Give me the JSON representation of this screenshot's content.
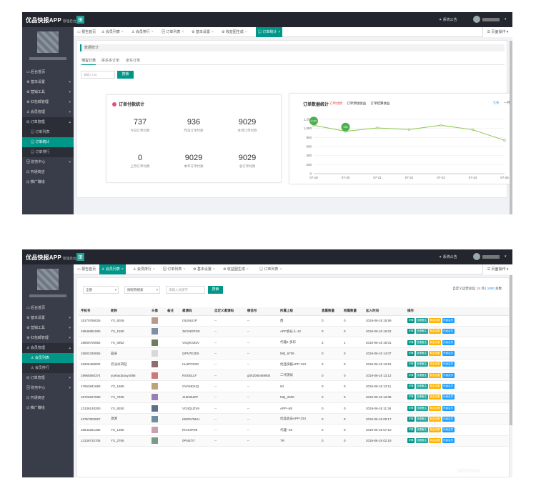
{
  "app": {
    "title": "优品快报APP",
    "subtitle": "管理后台",
    "notice": "系统公告",
    "page_ops": "页面操作",
    "grid_icon": "grid-icon"
  },
  "menu": {
    "home": "后台首页",
    "basic": "基本设置",
    "market": "营销工具",
    "red": "红包邮管理",
    "member": "会员管理",
    "order": "订单管理",
    "order_list": "订单列表",
    "order_stats": "订单统计",
    "order_rank": "订单排行",
    "finance": "财务中心",
    "store": "开通商店",
    "promo": "推广赚钱",
    "member_list": "会员列表",
    "member_rank": "会员排行"
  },
  "s1": {
    "tabs": [
      "报告首页",
      "会员列表",
      "会员排行",
      "订单列表",
      "基本设置",
      "收益图生成",
      "订单统计"
    ],
    "crumb": "数据统计",
    "subtabs": [
      "淘宝订单",
      "拼多多订单",
      "京东订单"
    ],
    "search_placeholder": "请输入UID",
    "search_btn": "搜索",
    "stats_title": "订单付款统计",
    "stats": [
      {
        "value": "737",
        "label": "今日订单付款"
      },
      {
        "value": "936",
        "label": "昨日订单付款"
      },
      {
        "value": "9029",
        "label": "本月订单付款"
      },
      {
        "value": "0",
        "label": "上月订单付款"
      },
      {
        "value": "9029",
        "label": "本年订单付款"
      },
      {
        "value": "9029",
        "label": "总订单付款"
      }
    ],
    "chart_title": "订单数据统计",
    "chart_links": [
      "订单付款",
      "订单预估收益",
      "订单结算收益"
    ],
    "chart_range": [
      "七天",
      "一月",
      "一年"
    ]
  },
  "chart_data": {
    "type": "line",
    "x": [
      "07-19",
      "07-20",
      "07-21",
      "07-22",
      "07-23",
      "07-24",
      "07-25"
    ],
    "series": [
      {
        "name": "订单付款",
        "values": [
          1070,
          936,
          1010,
          975,
          1070,
          970,
          737
        ]
      }
    ],
    "ylim": [
      0,
      1200
    ],
    "yticks": [
      "0",
      "200",
      "400",
      "600",
      "800",
      "1,000",
      "1,200"
    ],
    "point_labels": [
      "1,070",
      "936"
    ],
    "color": "#8bc34a"
  },
  "s2": {
    "tabs": [
      "报告首页",
      "会员列表",
      "会员排行",
      "订单列表",
      "基本设置",
      "收益图生成",
      "订单列表"
    ],
    "filter_all": "全部",
    "filter_by": "按昵称搜索",
    "keyword_placeholder": "请输入关键字",
    "search_btn": "搜索",
    "summary_prefix": "自定义运营总监:",
    "summary_count": "24",
    "summary_mid": "月",
    "summary_total": "1000",
    "summary_suffix": "总数",
    "columns": [
      "手机号",
      "昵称",
      "头像",
      "备注",
      "邀请码",
      "自定义邀请码",
      "微信号",
      "所属上级",
      "直属数量",
      "附属数量",
      "加入时间",
      "操作"
    ],
    "ops": [
      "详情",
      "设置备注",
      "佣金设置",
      "升级会员"
    ],
    "rows": [
      {
        "phone": "15170766026",
        "nick": "YX_6026",
        "note": "",
        "code": "I3L6NU1P",
        "ccode": "--",
        "wx": "--",
        "parent": "西",
        "d": "0",
        "a": "0",
        "time": "2019-06-18 15:59"
      },
      {
        "phone": "18946881590",
        "nick": "YX_1590",
        "note": "",
        "code": "3KGNDPG8",
        "ccode": "--",
        "wx": "--",
        "parent": "APP会长人-12",
        "d": "0",
        "a": "0",
        "time": "2019-06-18 16:02"
      },
      {
        "phone": "18609700952",
        "nick": "YX_0952",
        "note": "",
        "code": "VSQKG83V",
        "ccode": "--",
        "wx": "--",
        "parent": "代理1-多彩",
        "d": "3",
        "a": "1",
        "time": "2019-06-18 15:01"
      },
      {
        "phone": "15502340655",
        "nick": "晏卓",
        "note": "",
        "code": "QPN7E3D5",
        "ccode": "--",
        "wx": "--",
        "parent": "MQ_6706",
        "d": "0",
        "a": "0",
        "time": "2019-06-18 14:07"
      },
      {
        "phone": "18326458002",
        "nick": "云淡@风轻",
        "note": "",
        "code": "HL6PO33G",
        "ccode": "--",
        "wx": "--",
        "parent": "优品快报APP-123",
        "d": "0",
        "a": "0",
        "time": "2019-06-18 13:51"
      },
      {
        "phone": "19965580374",
        "nick": "yuebaobaoyo088",
        "note": "",
        "code": "RS4I0LLF",
        "ccode": "--",
        "wx": "ghh2085469904",
        "parent": "二代测试",
        "d": "0",
        "a": "0",
        "time": "2019-06-18 13:12"
      },
      {
        "phone": "17652841669",
        "nick": "YX_1669",
        "note": "",
        "code": "OVA593UQ",
        "ccode": "--",
        "wx": "--",
        "parent": "63",
        "d": "0",
        "a": "0",
        "time": "2019-06-18 13:11"
      },
      {
        "phone": "18726267699",
        "nick": "YX_7699",
        "note": "",
        "code": "J13N6UEP",
        "ccode": "--",
        "wx": "--",
        "parent": "MQ_2500",
        "d": "0",
        "a": "0",
        "time": "2019-06-18 12:08"
      },
      {
        "phone": "13136148250",
        "nick": "YX_8250",
        "note": "",
        "code": "VG4QLDV9",
        "ccode": "--",
        "wx": "--",
        "parent": "APP--85",
        "d": "0",
        "a": "0",
        "time": "2019-06-18 11:26"
      },
      {
        "phone": "13757803067",
        "nick": "源源",
        "note": "",
        "code": "KB0DVNHU",
        "ccode": "--",
        "wx": "--",
        "parent": "优品会员APP-334",
        "d": "0",
        "a": "0",
        "time": "2019-06-18 09:17"
      },
      {
        "phone": "18643261366",
        "nick": "YX_1366",
        "note": "",
        "code": "RIC0JPD8",
        "ccode": "--",
        "wx": "--",
        "parent": "代理--25",
        "d": "0",
        "a": "0",
        "time": "2019-06-18 07:10"
      },
      {
        "phone": "13139732706",
        "nick": "YX_2706",
        "note": "",
        "code": "0PNE7I7",
        "ccode": "--",
        "wx": "--",
        "parent": "TR",
        "d": "0",
        "a": "0",
        "time": "2019-06-18 02:19"
      }
    ]
  },
  "colors": {
    "header": "#23262e",
    "sidebar": "#393d49",
    "accent": "#009688"
  }
}
